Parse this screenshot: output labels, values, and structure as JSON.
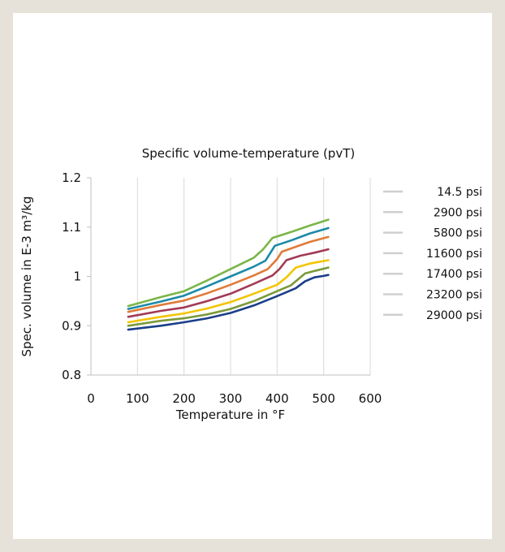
{
  "chart_data": {
    "type": "line",
    "title": "Specific volume-temperature (pvT)",
    "xlabel": "Temperature in °F",
    "ylabel": "Spec. volume in E-3 m³/kg",
    "xlim": [
      0,
      600
    ],
    "ylim": [
      0.8,
      1.2
    ],
    "x_ticks": [
      "0",
      "100",
      "200",
      "300",
      "400",
      "500",
      "600"
    ],
    "y_ticks": [
      "0.8",
      "0.9",
      "1",
      "1.1",
      "1.2"
    ],
    "grid": "vertical",
    "legend_position": "right",
    "series": [
      {
        "name": "14.5 psi",
        "color": "#7ab648",
        "x": [
          80,
          150,
          200,
          250,
          300,
          350,
          370,
          390,
          430,
          470,
          510
        ],
        "y": [
          0.94,
          0.958,
          0.97,
          0.992,
          1.015,
          1.038,
          1.055,
          1.078,
          1.09,
          1.103,
          1.115
        ]
      },
      {
        "name": "2900 psi",
        "color": "#1a8aa8",
        "x": [
          80,
          150,
          200,
          250,
          300,
          350,
          375,
          395,
          430,
          470,
          510
        ],
        "y": [
          0.934,
          0.949,
          0.961,
          0.98,
          1.0,
          1.02,
          1.032,
          1.062,
          1.073,
          1.087,
          1.098
        ]
      },
      {
        "name": "5800 psi",
        "color": "#e07b39",
        "x": [
          80,
          150,
          200,
          250,
          300,
          350,
          380,
          400,
          410,
          440,
          470,
          510
        ],
        "y": [
          0.928,
          0.942,
          0.951,
          0.966,
          0.983,
          1.002,
          1.015,
          1.035,
          1.05,
          1.06,
          1.07,
          1.08
        ]
      },
      {
        "name": "11600 psi",
        "color": "#a23a55",
        "x": [
          80,
          150,
          200,
          250,
          300,
          350,
          390,
          405,
          420,
          450,
          480,
          510
        ],
        "y": [
          0.918,
          0.93,
          0.937,
          0.95,
          0.965,
          0.985,
          1.002,
          1.015,
          1.033,
          1.042,
          1.048,
          1.055
        ]
      },
      {
        "name": "17400 psi",
        "color": "#f2c500",
        "x": [
          80,
          150,
          200,
          250,
          300,
          350,
          400,
          420,
          440,
          470,
          510
        ],
        "y": [
          0.907,
          0.918,
          0.925,
          0.935,
          0.948,
          0.965,
          0.983,
          0.998,
          1.018,
          1.026,
          1.033
        ]
      },
      {
        "name": "23200 psi",
        "color": "#7a9a3a",
        "x": [
          80,
          150,
          200,
          250,
          300,
          350,
          400,
          430,
          460,
          480,
          510
        ],
        "y": [
          0.9,
          0.91,
          0.915,
          0.923,
          0.934,
          0.95,
          0.97,
          0.982,
          1.006,
          1.011,
          1.018
        ]
      },
      {
        "name": "29000 psi",
        "color": "#1a3e8a",
        "x": [
          80,
          150,
          200,
          250,
          300,
          350,
          400,
          440,
          460,
          480,
          500,
          510
        ],
        "y": [
          0.892,
          0.9,
          0.907,
          0.915,
          0.926,
          0.941,
          0.96,
          0.976,
          0.99,
          0.998,
          1.001,
          1.003
        ]
      }
    ]
  }
}
